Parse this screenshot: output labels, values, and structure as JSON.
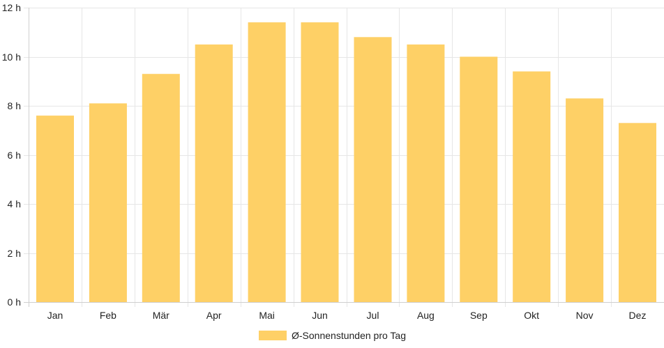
{
  "chart_data": {
    "type": "bar",
    "categories": [
      "Jan",
      "Feb",
      "Mär",
      "Apr",
      "Mai",
      "Jun",
      "Jul",
      "Aug",
      "Sep",
      "Okt",
      "Nov",
      "Dez"
    ],
    "series": [
      {
        "name": "Ø-Sonnenstunden pro Tag",
        "values": [
          7.6,
          8.1,
          9.3,
          10.5,
          11.4,
          11.4,
          10.8,
          10.5,
          10.0,
          9.4,
          8.3,
          7.3
        ],
        "color": "#fed066"
      }
    ],
    "y_ticks": [
      "0 h",
      "2 h",
      "4 h",
      "6 h",
      "8 h",
      "10 h",
      "12 h"
    ],
    "ylim": [
      0,
      12
    ],
    "grid": true,
    "legend": "bottom-center",
    "title": "",
    "xlabel": "",
    "ylabel": "",
    "grid_color": "#e6e6e6",
    "axis_color": "#cfcfcf"
  }
}
